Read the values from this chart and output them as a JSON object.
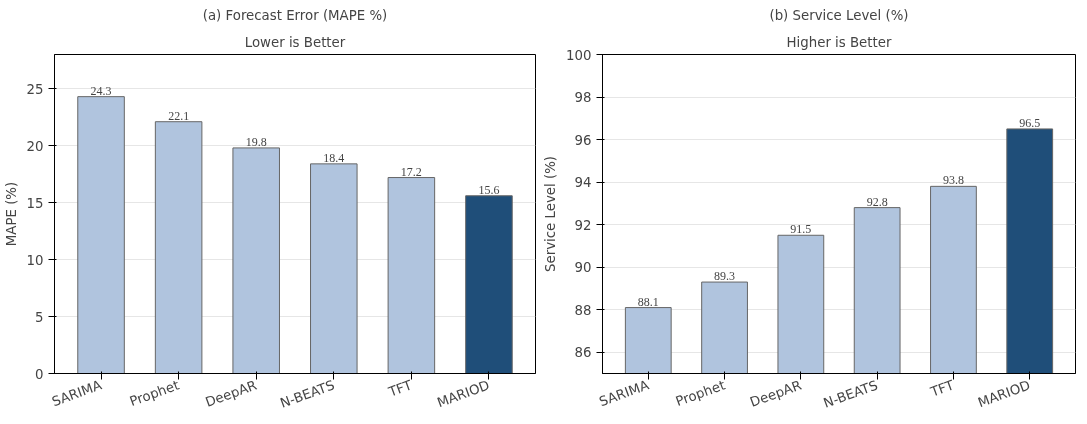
{
  "chart_data": [
    {
      "type": "bar",
      "title": "(a) Forecast Error (MAPE %)",
      "subtitle": "Lower is Better",
      "ylabel": "MAPE (%)",
      "categories": [
        "SARIMA",
        "Prophet",
        "DeepAR",
        "N-BEATS",
        "TFT",
        "MARIOD"
      ],
      "values": [
        24.3,
        22.1,
        19.8,
        18.4,
        17.2,
        15.6
      ],
      "colors": [
        "#b0c4de",
        "#b0c4de",
        "#b0c4de",
        "#b0c4de",
        "#b0c4de",
        "#1f4e79"
      ],
      "ylim": [
        0,
        28
      ],
      "yticks": [
        0,
        5,
        10,
        15,
        20,
        25
      ],
      "grid": "y",
      "data_labels": true
    },
    {
      "type": "bar",
      "title": "(b) Service Level (%)",
      "subtitle": "Higher is Better",
      "ylabel": "Service Level (%)",
      "categories": [
        "SARIMA",
        "Prophet",
        "DeepAR",
        "N-BEATS",
        "TFT",
        "MARIOD"
      ],
      "values": [
        88.1,
        89.3,
        91.5,
        92.8,
        93.8,
        96.5
      ],
      "colors": [
        "#b0c4de",
        "#b0c4de",
        "#b0c4de",
        "#b0c4de",
        "#b0c4de",
        "#1f4e79"
      ],
      "ylim": [
        85,
        100
      ],
      "yticks": [
        86,
        88,
        90,
        92,
        94,
        96,
        98,
        100
      ],
      "grid": "y",
      "data_labels": true
    }
  ]
}
